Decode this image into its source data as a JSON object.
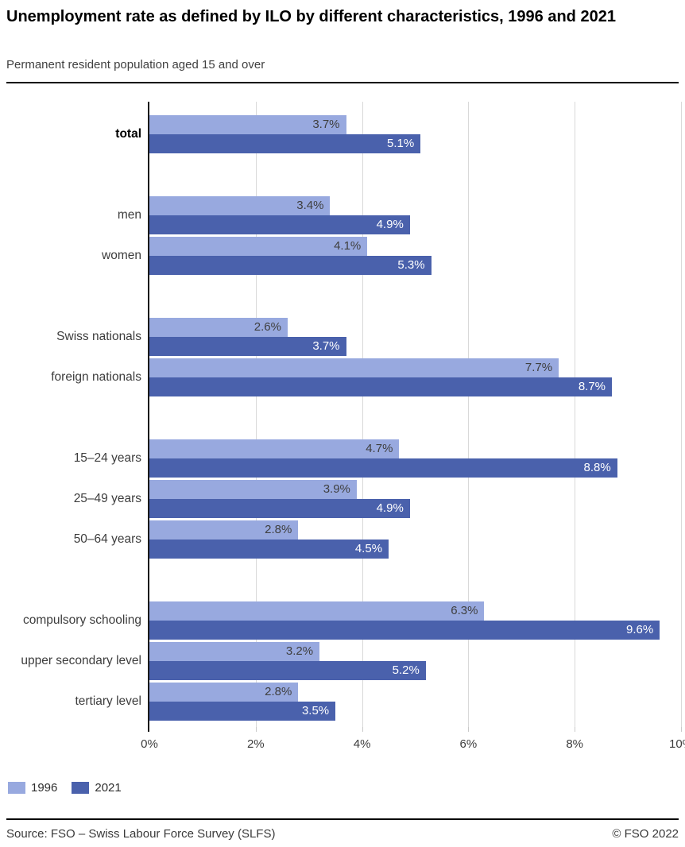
{
  "header": {
    "title": "Unemployment rate as defined by ILO by different characteristics, 1996 and 2021",
    "subtitle": "Permanent resident population aged 15 and over"
  },
  "chart_data": {
    "type": "bar",
    "orientation": "horizontal",
    "title": "Unemployment rate as defined by ILO by different characteristics, 1996 and 2021",
    "xlabel": "",
    "ylabel": "",
    "xlim": [
      0,
      10
    ],
    "x_ticks": [
      "0%",
      "2%",
      "4%",
      "6%",
      "8%",
      "10%"
    ],
    "grid": true,
    "value_suffix": "%",
    "legend_position": "bottom-left",
    "series_meta": [
      {
        "name": "1996",
        "color": "#98A9DF"
      },
      {
        "name": "2021",
        "color": "#4A61AC"
      }
    ],
    "groups": [
      {
        "rows": [
          {
            "label": "total",
            "bold": true,
            "values": [
              3.7,
              5.1
            ]
          }
        ]
      },
      {
        "rows": [
          {
            "label": "men",
            "values": [
              3.4,
              4.9
            ]
          },
          {
            "label": "women",
            "values": [
              4.1,
              5.3
            ]
          }
        ]
      },
      {
        "rows": [
          {
            "label": "Swiss nationals",
            "values": [
              2.6,
              3.7
            ]
          },
          {
            "label": "foreign nationals",
            "values": [
              7.7,
              8.7
            ]
          }
        ]
      },
      {
        "rows": [
          {
            "label": "15–24 years",
            "values": [
              4.7,
              8.8
            ]
          },
          {
            "label": "25–49 years",
            "values": [
              3.9,
              4.9
            ]
          },
          {
            "label": "50–64 years",
            "values": [
              2.8,
              4.5
            ]
          }
        ]
      },
      {
        "rows": [
          {
            "label": "compulsory schooling",
            "values": [
              6.3,
              9.6
            ]
          },
          {
            "label": "upper secondary level",
            "values": [
              3.2,
              5.2
            ]
          },
          {
            "label": "tertiary level",
            "values": [
              2.8,
              3.5
            ]
          }
        ]
      }
    ]
  },
  "legend": {
    "items": [
      {
        "label": "1996",
        "color": "#98A9DF"
      },
      {
        "label": "2021",
        "color": "#4A61AC"
      }
    ]
  },
  "footer": {
    "source": "Source: FSO – Swiss Labour Force Survey (SLFS)",
    "copyright": "© FSO 2022"
  }
}
